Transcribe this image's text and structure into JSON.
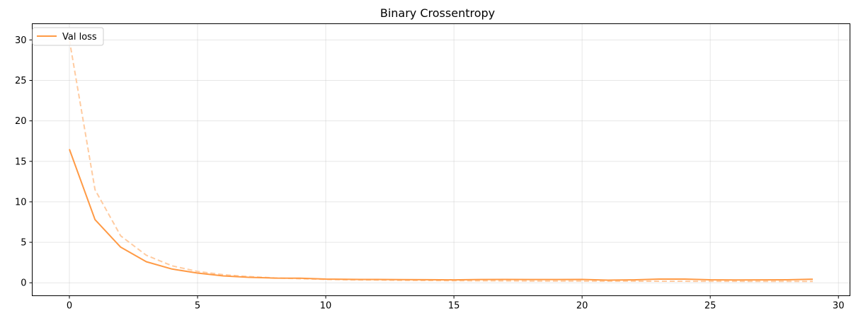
{
  "chart_data": {
    "type": "line",
    "title": "Binary Crossentropy",
    "xlabel": "",
    "ylabel": "",
    "xlim": [
      -1.45,
      30.45
    ],
    "ylim": [
      -1.6,
      32.0
    ],
    "xticks": [
      0,
      5,
      10,
      15,
      20,
      25,
      30
    ],
    "yticks": [
      0,
      5,
      10,
      15,
      20,
      25,
      30
    ],
    "grid": true,
    "legend_position": "top-left",
    "x": [
      0,
      1,
      2,
      3,
      4,
      5,
      6,
      7,
      8,
      9,
      10,
      11,
      12,
      13,
      14,
      15,
      16,
      17,
      18,
      19,
      20,
      21,
      22,
      23,
      24,
      25,
      26,
      27,
      28,
      29
    ],
    "series": [
      {
        "name": "Val loss",
        "style": "solid",
        "color": "#ff9a45",
        "values": [
          16.5,
          7.8,
          4.4,
          2.6,
          1.7,
          1.2,
          0.85,
          0.68,
          0.58,
          0.57,
          0.46,
          0.42,
          0.41,
          0.39,
          0.38,
          0.36,
          0.4,
          0.41,
          0.4,
          0.4,
          0.41,
          0.33,
          0.36,
          0.46,
          0.46,
          0.37,
          0.35,
          0.36,
          0.37,
          0.44
        ]
      },
      {
        "style": "dashed",
        "color": "#ffcba0",
        "values": [
          30.0,
          11.5,
          5.8,
          3.4,
          2.1,
          1.4,
          1.0,
          0.76,
          0.6,
          0.5,
          0.42,
          0.36,
          0.34,
          0.3,
          0.28,
          0.26,
          0.25,
          0.24,
          0.22,
          0.22,
          0.21,
          0.2,
          0.2,
          0.19,
          0.19,
          0.18,
          0.18,
          0.17,
          0.17,
          0.17
        ]
      }
    ]
  }
}
